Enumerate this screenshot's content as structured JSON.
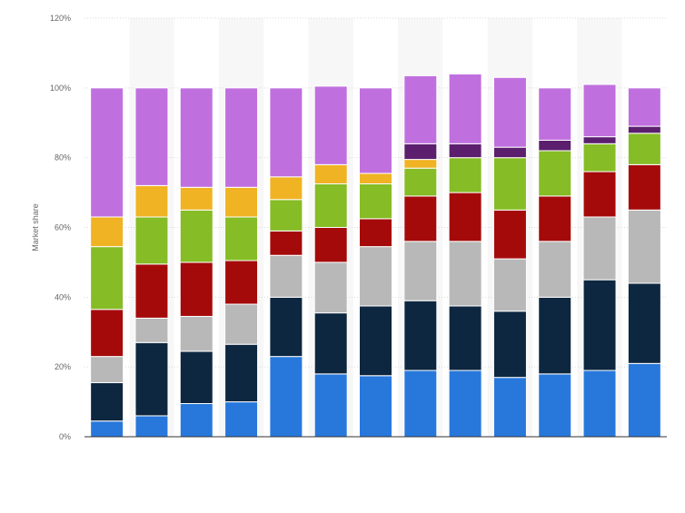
{
  "chart_data": {
    "type": "bar",
    "stacked": true,
    "ylabel": "Market share",
    "xlabel": "",
    "ylim": [
      0,
      120
    ],
    "yticks": [
      0,
      20,
      40,
      60,
      80,
      100,
      120
    ],
    "ytick_suffix": "%",
    "grid": true,
    "alternating_column_shading": true,
    "categories": [
      "",
      "",
      "",
      "",
      "",
      "",
      "",
      "",
      "",
      "",
      "",
      "",
      ""
    ],
    "series": [
      {
        "color": "#2878dc",
        "values": [
          4.5,
          6,
          9.5,
          10,
          23,
          18,
          17.5,
          19,
          19,
          17,
          18,
          19,
          21
        ]
      },
      {
        "color": "#0e2740",
        "values": [
          11,
          21,
          15,
          16.5,
          17,
          17.5,
          20,
          20,
          18.5,
          19,
          22,
          26,
          23
        ]
      },
      {
        "color": "#b8b8b8",
        "values": [
          7.5,
          7,
          10,
          11.5,
          12,
          14.5,
          17,
          17,
          18.5,
          15,
          16,
          18,
          21
        ]
      },
      {
        "color": "#a50a0a",
        "values": [
          13.5,
          15.5,
          15.5,
          12.5,
          7,
          10,
          8,
          13,
          14,
          14,
          13,
          13,
          13
        ]
      },
      {
        "color": "#86bc25",
        "values": [
          18,
          13.5,
          15,
          12.5,
          9,
          12.5,
          10,
          8,
          10,
          15,
          13,
          8,
          9
        ]
      },
      {
        "color": "#f0b323",
        "values": [
          8.5,
          9,
          6.5,
          8.5,
          6.5,
          5.5,
          3,
          2.5,
          0,
          0,
          0,
          0,
          0
        ]
      },
      {
        "color": "#5b1f6e",
        "values": [
          0,
          0,
          0,
          0,
          0,
          0,
          0,
          4.5,
          4,
          3,
          3,
          2,
          2
        ]
      },
      {
        "color": "#c070de",
        "values": [
          37,
          28,
          28.5,
          28.5,
          25.5,
          22.5,
          24.5,
          19.5,
          20,
          20,
          15,
          15,
          11
        ]
      }
    ]
  }
}
